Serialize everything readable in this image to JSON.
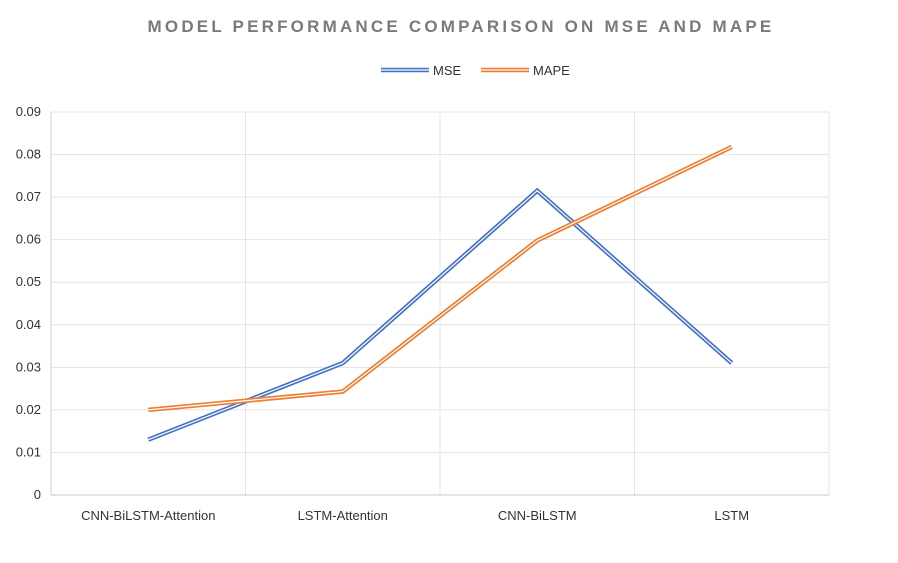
{
  "chart_data": {
    "type": "line",
    "title": "MODEL PERFORMANCE COMPARISON ON MSE AND MAPE",
    "xlabel": "",
    "ylabel": "",
    "categories": [
      "CNN-BiLSTM-Attention",
      "LSTM-Attention",
      "CNN-BiLSTM",
      "LSTM"
    ],
    "series": [
      {
        "name": "MSE",
        "values": [
          0.013,
          0.031,
          0.0715,
          0.031
        ],
        "color": "#4472c4"
      },
      {
        "name": "MAPE",
        "values": [
          0.02,
          0.0243,
          0.0598,
          0.0818
        ],
        "color": "#ed7d31"
      }
    ],
    "ylim": [
      0,
      0.09
    ],
    "yticks": [
      "0",
      "0.01",
      "0.02",
      "0.03",
      "0.04",
      "0.05",
      "0.06",
      "0.07",
      "0.08",
      "0.09"
    ],
    "grid": true,
    "legend_position": "top-center",
    "line_style": "double"
  }
}
